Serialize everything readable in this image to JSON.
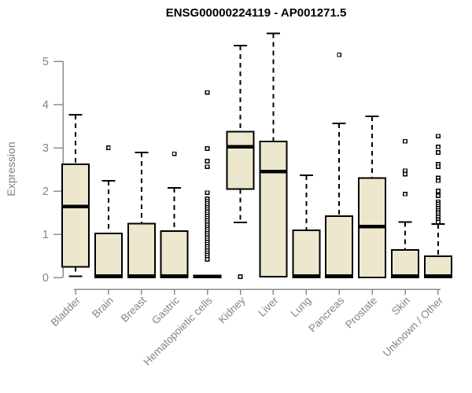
{
  "page": {
    "background": "#ffffff"
  },
  "chart_data": {
    "type": "boxplot",
    "title": "ENSG00000224119 - AP001271.5",
    "xlabel": "",
    "ylabel": "Expression",
    "ylim": [
      0,
      5.7
    ],
    "yticks": [
      0,
      1,
      2,
      3,
      4,
      5
    ],
    "grid": false,
    "legend": null,
    "colors": {
      "box_fill": "#EDE7CE",
      "box_stroke": "#000000",
      "median": "#000000",
      "whisker": "#000000",
      "outlier_stroke": "#000000",
      "outlier_fill": "#ffffff",
      "axis": "#8C8C8C",
      "tick_label": "#848484",
      "title": "#000000"
    },
    "categories": [
      "Bladder",
      "Brain",
      "Breast",
      "Gastric",
      "Hematopoietic cells",
      "Kidney",
      "Liver",
      "Lung",
      "Pancreas",
      "Prostate",
      "Skin",
      "Unknown / Other"
    ],
    "series": [
      {
        "label": "Bladder",
        "whislo": 0.03,
        "q1": 0.25,
        "med": 1.64,
        "q3": 2.62,
        "whishi": 3.76,
        "outliers": []
      },
      {
        "label": "Brain",
        "whislo": 0.0,
        "q1": 0.0,
        "med": 0.03,
        "q3": 1.02,
        "whishi": 2.24,
        "outliers": [
          3.0
        ]
      },
      {
        "label": "Breast",
        "whislo": 0.0,
        "q1": 0.0,
        "med": 0.03,
        "q3": 1.25,
        "whishi": 2.89,
        "outliers": []
      },
      {
        "label": "Gastric",
        "whislo": 0.0,
        "q1": 0.0,
        "med": 0.03,
        "q3": 1.07,
        "whishi": 2.07,
        "outliers": [
          2.86
        ]
      },
      {
        "label": "Hematopoietic cells",
        "whislo": 0.0,
        "q1": 0.0,
        "med": 0.02,
        "q3": 0.05,
        "whishi": 0.05,
        "outliers": [
          4.28,
          2.98,
          2.69,
          2.56,
          1.96,
          1.82,
          1.77,
          1.72,
          1.67,
          1.62,
          1.57,
          1.52,
          1.47,
          1.42,
          1.37,
          1.32,
          1.27,
          1.22,
          1.17,
          1.12,
          1.07,
          1.02,
          0.97,
          0.92,
          0.87,
          0.82,
          0.77,
          0.72,
          0.67,
          0.62,
          0.57,
          0.52,
          0.47,
          0.42
        ]
      },
      {
        "label": "Kidney",
        "whislo": 1.27,
        "q1": 2.05,
        "med": 3.02,
        "q3": 3.37,
        "whishi": 5.36,
        "outliers": [
          0.02
        ]
      },
      {
        "label": "Liver",
        "whislo": 0.0,
        "q1": 0.02,
        "med": 2.45,
        "q3": 3.15,
        "whishi": 5.65,
        "outliers": []
      },
      {
        "label": "Lung",
        "whislo": 0.0,
        "q1": 0.0,
        "med": 0.03,
        "q3": 1.09,
        "whishi": 2.36,
        "outliers": []
      },
      {
        "label": "Pancreas",
        "whislo": 0.0,
        "q1": 0.0,
        "med": 0.03,
        "q3": 1.42,
        "whishi": 3.56,
        "outliers": [
          5.15
        ]
      },
      {
        "label": "Prostate",
        "whislo": 0.0,
        "q1": 0.0,
        "med": 1.18,
        "q3": 2.3,
        "whishi": 3.73,
        "outliers": []
      },
      {
        "label": "Skin",
        "whislo": 0.0,
        "q1": 0.0,
        "med": 0.03,
        "q3": 0.64,
        "whishi": 1.28,
        "outliers": [
          3.15,
          2.47,
          2.39,
          1.93
        ]
      },
      {
        "label": "Unknown / Other",
        "whislo": 0.0,
        "q1": 0.0,
        "med": 0.03,
        "q3": 0.49,
        "whishi": 1.24,
        "outliers": [
          3.27,
          3.02,
          2.89,
          2.62,
          2.56,
          2.3,
          2.24,
          2.0,
          1.89,
          1.75,
          1.7,
          1.65,
          1.6,
          1.55,
          1.5,
          1.45,
          1.4,
          1.34,
          1.28
        ]
      }
    ]
  }
}
